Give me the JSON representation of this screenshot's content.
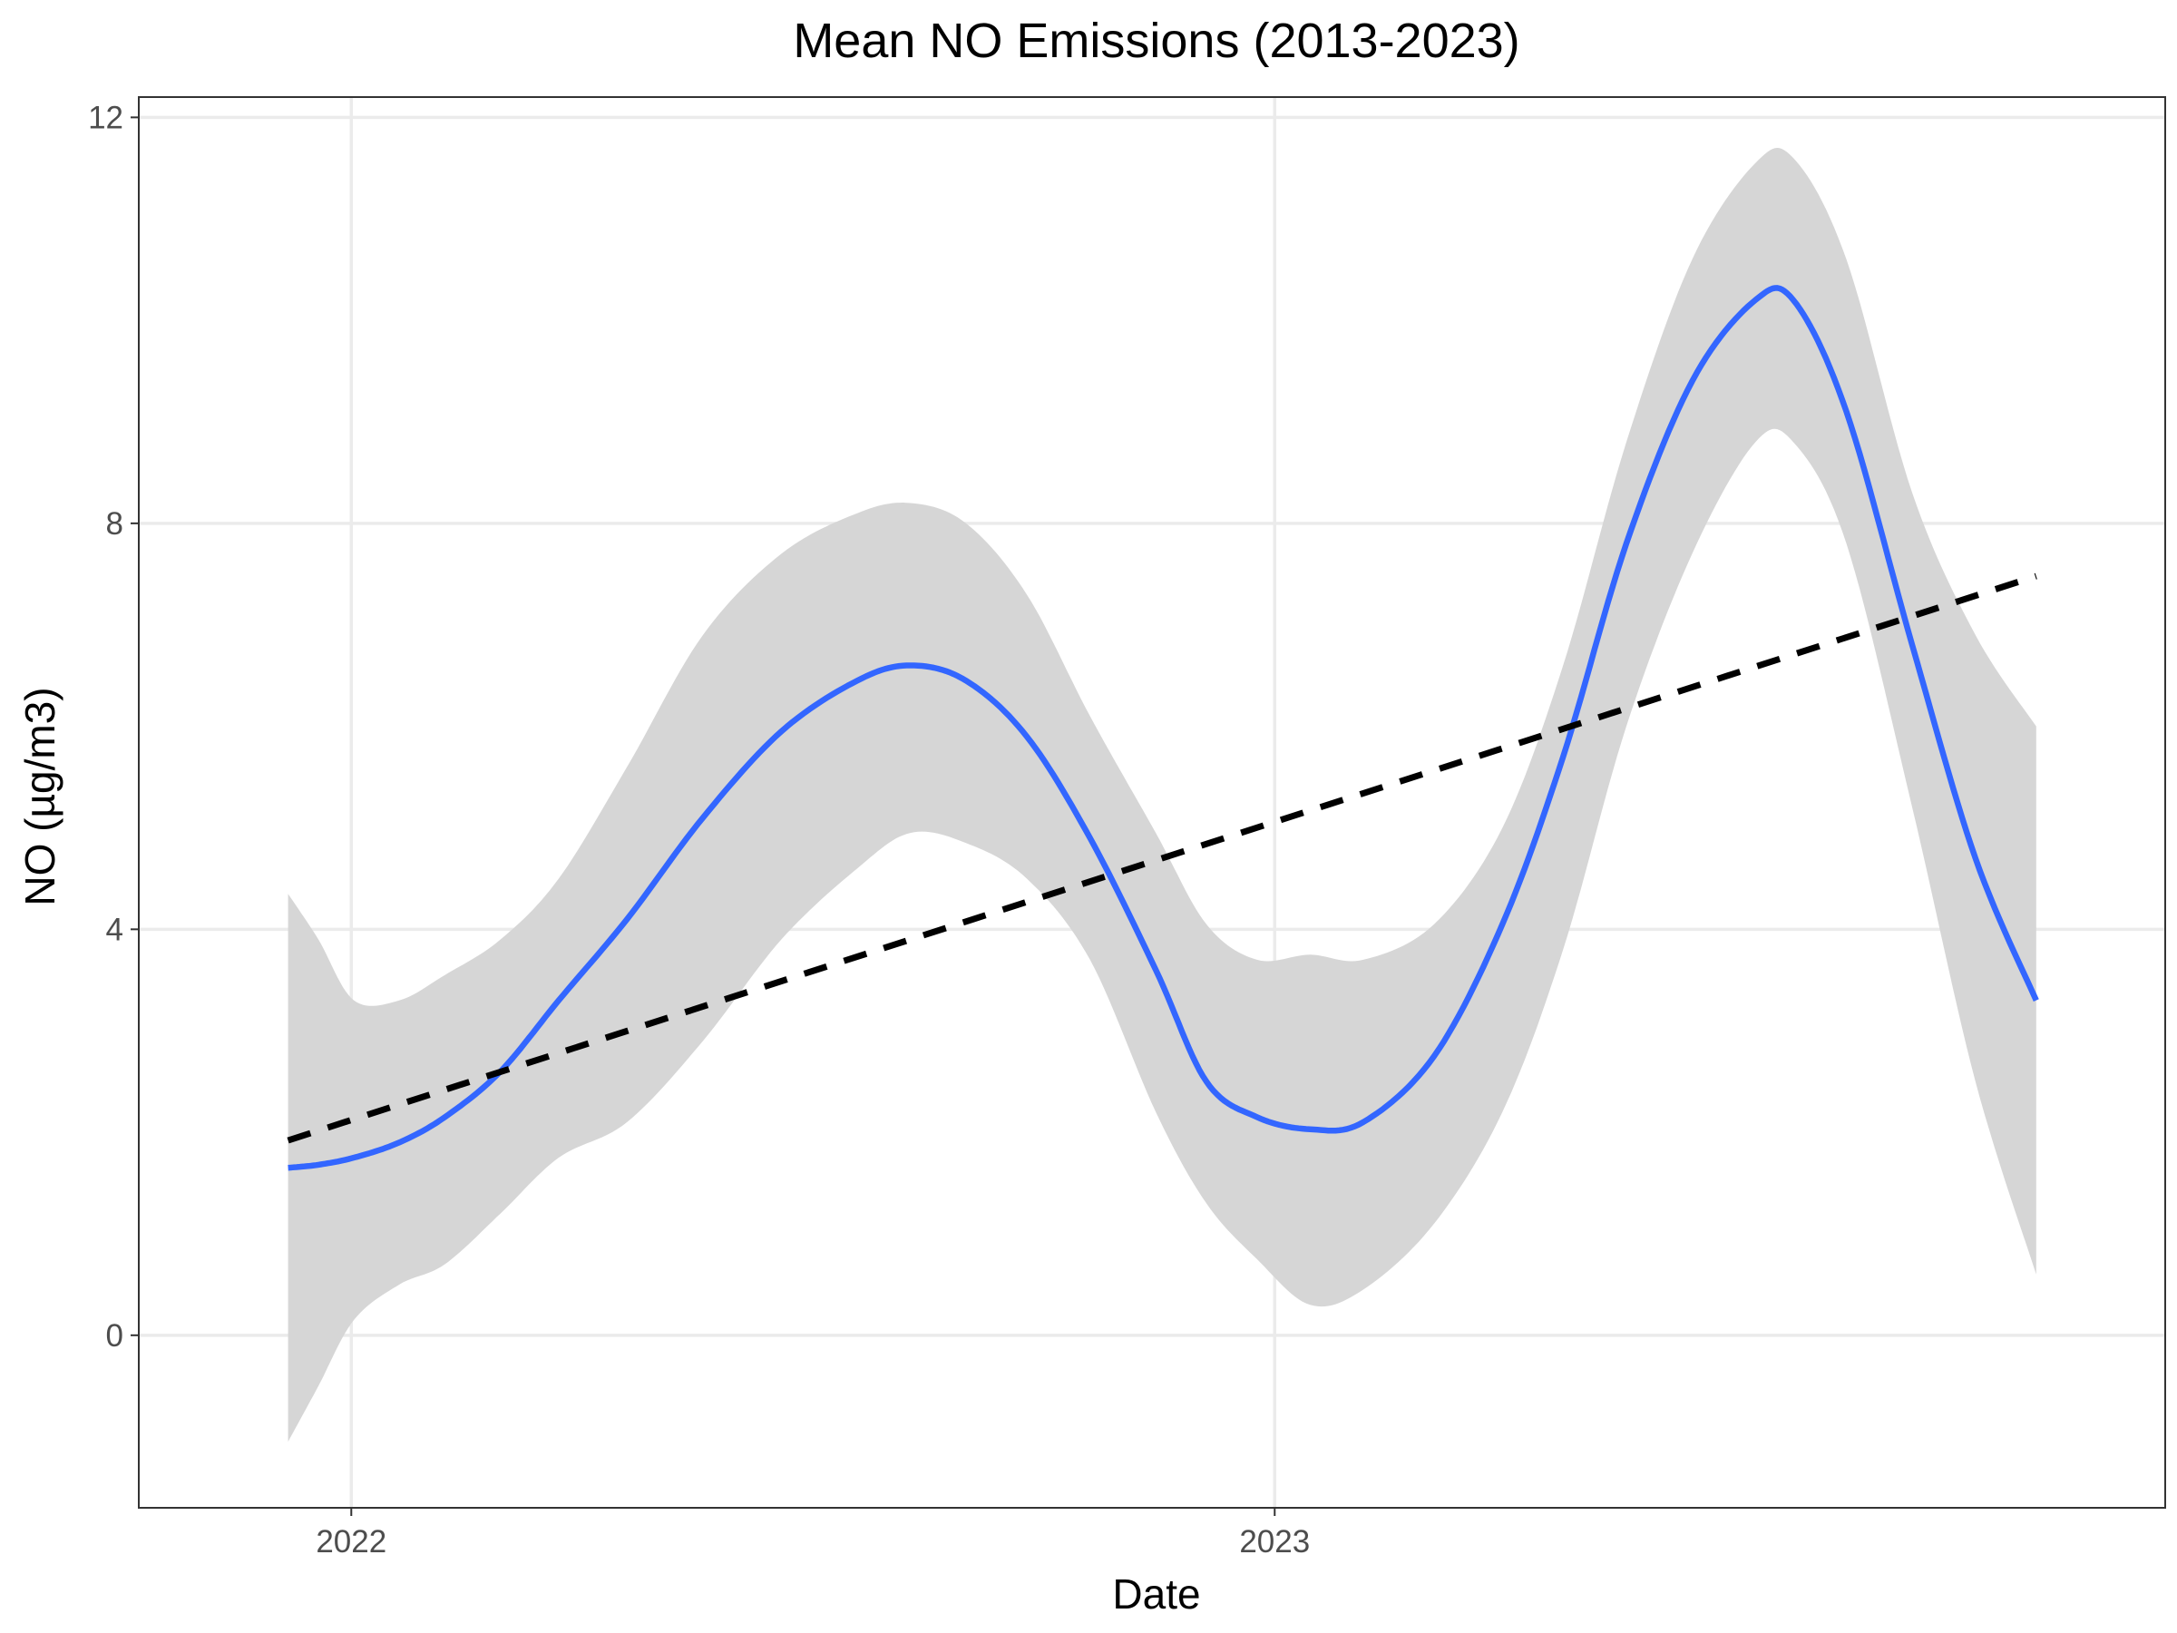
{
  "chart_data": {
    "type": "line",
    "title": "Mean NO Emissions (2013-2023)",
    "xlabel": "Date",
    "ylabel": "NO (µg/m3)",
    "x_axis_type": "date",
    "xlim": [
      "2021-10-09",
      "2023-12-19"
    ],
    "ylim": [
      -1.7,
      12.2
    ],
    "x_ticks": [
      {
        "date": "2022-01-01",
        "label": "2022"
      },
      {
        "date": "2023-01-01",
        "label": "2023"
      }
    ],
    "y_ticks": [
      {
        "value": 0,
        "label": "0"
      },
      {
        "value": 4,
        "label": "4"
      },
      {
        "value": 8,
        "label": "8"
      },
      {
        "value": 12,
        "label": "12"
      }
    ],
    "grid": true,
    "legend": "none",
    "colors": {
      "smooth_line": "#3366ff",
      "confidence_band": "#d6d6d6",
      "trend_line": "#000000",
      "grid": "#ebebeb",
      "panel_border": "#333333"
    },
    "series": [
      {
        "kind": "loess-smooth-with-confidence-band",
        "style": "solid",
        "points": [
          {
            "x": "2021-12-07",
            "y": 1.65,
            "lo": -1.05,
            "hi": 4.35
          },
          {
            "x": "2021-12-19",
            "y": 1.68,
            "lo": -0.5,
            "hi": 3.9
          },
          {
            "x": "2022-01-02",
            "y": 1.75,
            "lo": 0.15,
            "hi": 3.3
          },
          {
            "x": "2022-01-20",
            "y": 1.9,
            "lo": 0.5,
            "hi": 3.3
          },
          {
            "x": "2022-02-07",
            "y": 2.15,
            "lo": 0.7,
            "hi": 3.55
          },
          {
            "x": "2022-03-01",
            "y": 2.6,
            "lo": 1.2,
            "hi": 3.9
          },
          {
            "x": "2022-03-24",
            "y": 3.3,
            "lo": 1.75,
            "hi": 4.5
          },
          {
            "x": "2022-04-20",
            "y": 4.1,
            "lo": 2.1,
            "hi": 5.6
          },
          {
            "x": "2022-05-20",
            "y": 5.1,
            "lo": 2.9,
            "hi": 6.9
          },
          {
            "x": "2022-06-20",
            "y": 5.95,
            "lo": 3.9,
            "hi": 7.7
          },
          {
            "x": "2022-07-20",
            "y": 6.45,
            "lo": 4.6,
            "hi": 8.1
          },
          {
            "x": "2022-08-10",
            "y": 6.6,
            "lo": 4.95,
            "hi": 8.2
          },
          {
            "x": "2022-09-01",
            "y": 6.45,
            "lo": 4.85,
            "hi": 8.0
          },
          {
            "x": "2022-09-25",
            "y": 5.9,
            "lo": 4.5,
            "hi": 7.3
          },
          {
            "x": "2022-10-20",
            "y": 4.9,
            "lo": 3.7,
            "hi": 6.1
          },
          {
            "x": "2022-11-15",
            "y": 3.6,
            "lo": 2.2,
            "hi": 4.95
          },
          {
            "x": "2022-12-05",
            "y": 2.5,
            "lo": 1.3,
            "hi": 4.05
          },
          {
            "x": "2022-12-25",
            "y": 2.15,
            "lo": 0.75,
            "hi": 3.7
          },
          {
            "x": "2023-01-15",
            "y": 2.03,
            "lo": 0.3,
            "hi": 3.75
          },
          {
            "x": "2023-02-05",
            "y": 2.1,
            "lo": 0.45,
            "hi": 3.7
          },
          {
            "x": "2023-03-05",
            "y": 2.75,
            "lo": 1.1,
            "hi": 4.05
          },
          {
            "x": "2023-04-01",
            "y": 4.05,
            "lo": 2.2,
            "hi": 5.0
          },
          {
            "x": "2023-04-25",
            "y": 5.7,
            "lo": 3.8,
            "hi": 6.6
          },
          {
            "x": "2023-05-20",
            "y": 7.8,
            "lo": 6.0,
            "hi": 8.8
          },
          {
            "x": "2023-06-15",
            "y": 9.4,
            "lo": 7.7,
            "hi": 10.6
          },
          {
            "x": "2023-07-10",
            "y": 10.2,
            "lo": 8.8,
            "hi": 11.55
          },
          {
            "x": "2023-07-25",
            "y": 10.2,
            "lo": 8.8,
            "hi": 11.6
          },
          {
            "x": "2023-08-15",
            "y": 9.1,
            "lo": 7.8,
            "hi": 10.6
          },
          {
            "x": "2023-09-10",
            "y": 6.8,
            "lo": 5.2,
            "hi": 8.3
          },
          {
            "x": "2023-10-05",
            "y": 4.7,
            "lo": 2.5,
            "hi": 6.9
          },
          {
            "x": "2023-10-29",
            "y": 3.3,
            "lo": 0.6,
            "hi": 6.0
          }
        ]
      },
      {
        "kind": "linear-trend",
        "style": "dashed",
        "points": [
          {
            "x": "2021-12-07",
            "y": 1.92
          },
          {
            "x": "2023-10-29",
            "y": 7.48
          }
        ]
      }
    ]
  }
}
